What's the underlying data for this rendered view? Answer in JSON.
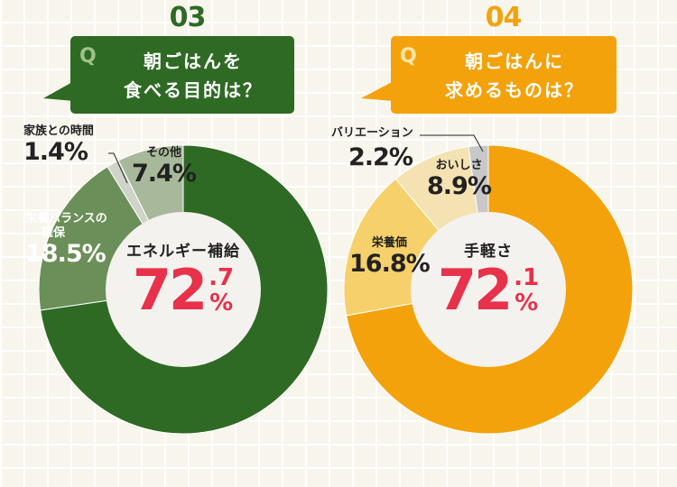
{
  "colors": {
    "green_main": "#2e6a24",
    "green_mid": "#6b8f58",
    "green_light": "#a7b99a",
    "green_gray": "#cfd3c8",
    "orange_main": "#f3a20b",
    "orange_mid": "#f6d06a",
    "orange_light": "#f4e2b2",
    "orange_gray": "#c8c8c8",
    "accent_red": "#e8314a"
  },
  "chart_data": [
    {
      "type": "pie",
      "number": "03",
      "question": "朝ごはんを食べる目的は？",
      "question_lines": [
        "朝ごはんを",
        "食べる目的は？"
      ],
      "q_mark": "Q",
      "slices": [
        {
          "label": "エネルギー補給",
          "value": 72.7,
          "int": "72",
          "dec": ".7",
          "pct": "%"
        },
        {
          "label": "栄養バランスの確保",
          "label_lines": [
            "栄養バランスの",
            "確保"
          ],
          "value": 18.5,
          "display": "18.5%"
        },
        {
          "label": "家族との時間",
          "value": 1.4,
          "display": "1.4%"
        },
        {
          "label": "その他",
          "value": 7.4,
          "display": "7.4%"
        }
      ]
    },
    {
      "type": "pie",
      "number": "04",
      "question": "朝ごはんに求めるものは？",
      "question_lines": [
        "朝ごはんに",
        "求めるものは？"
      ],
      "q_mark": "Q",
      "slices": [
        {
          "label": "手軽さ",
          "value": 72.1,
          "int": "72",
          "dec": ".1",
          "pct": "%"
        },
        {
          "label": "栄養価",
          "value": 16.8,
          "display": "16.8%"
        },
        {
          "label": "おいしさ",
          "value": 8.9,
          "display": "8.9%"
        },
        {
          "label": "バリエーション",
          "value": 2.2,
          "display": "2.2%"
        }
      ]
    }
  ]
}
